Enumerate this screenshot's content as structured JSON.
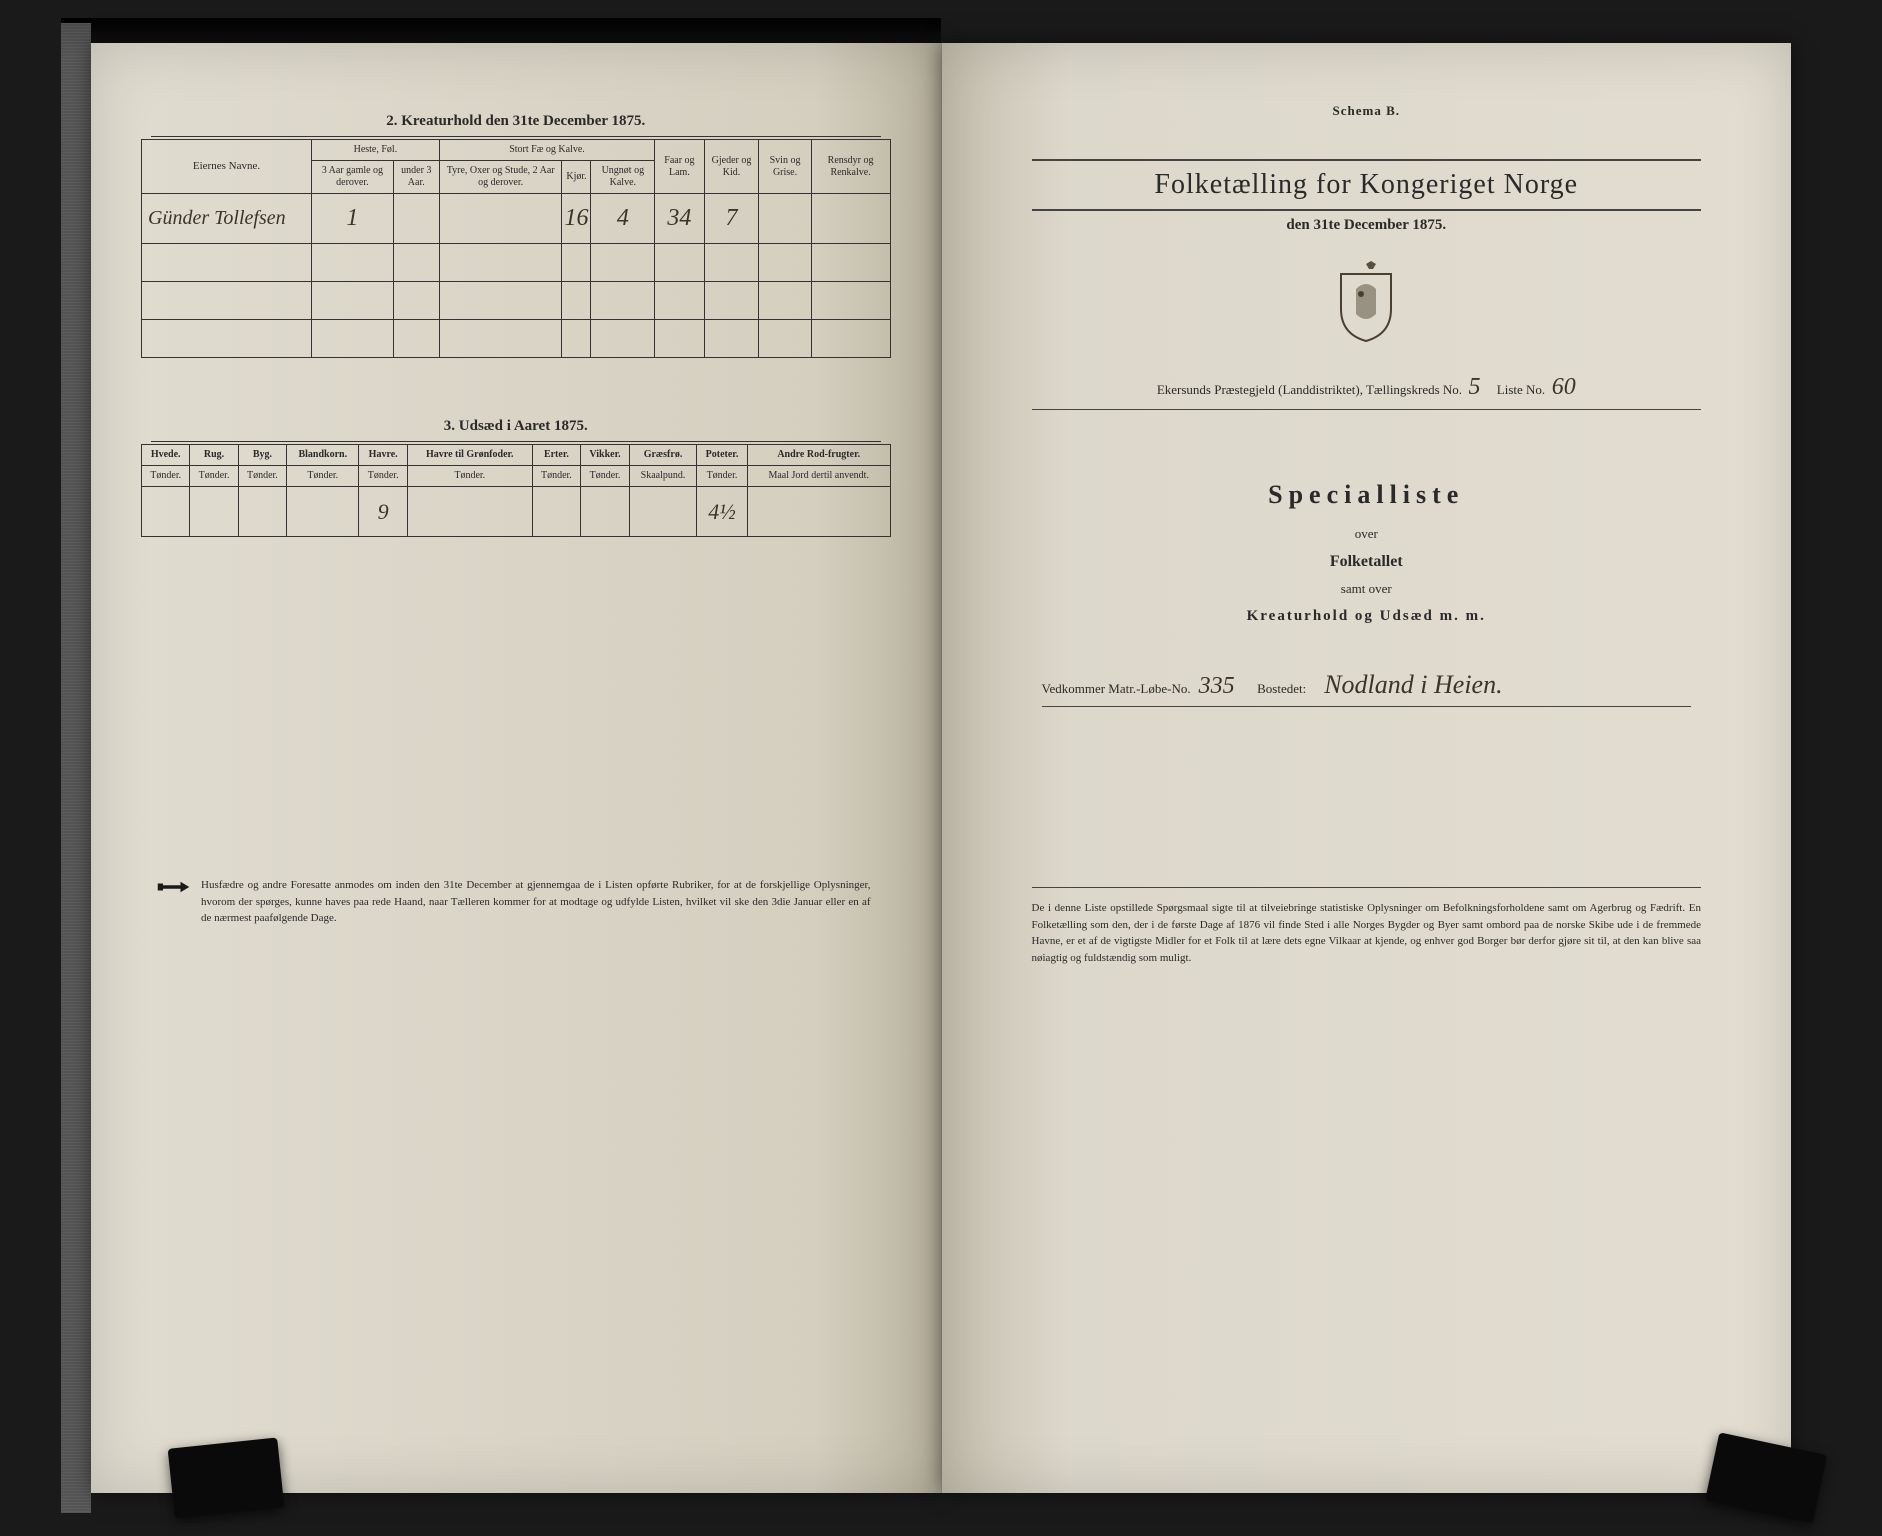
{
  "left": {
    "table2": {
      "title": "2.  Kreaturhold den 31te December 1875.",
      "headers": {
        "name": "Eiernes Navne.",
        "group_heste": "Heste, Føl.",
        "group_fae": "Stort Fæ og Kalve.",
        "group_faar": "Faar og Lam.",
        "group_gjed": "Gjeder og Kid.",
        "group_svin": "Svin og Grise.",
        "group_ren": "Rensdyr og Renkalve.",
        "h1": "3 Aar gamle og derover.",
        "h2": "under 3 Aar.",
        "f1": "Tyre, Oxer og Stude, 2 Aar og derover.",
        "f2": "Kjør.",
        "f3": "Ungnøt og Kalve."
      },
      "row": {
        "name": "Günder Tollefsen",
        "heste3": "1",
        "kjor": "16",
        "ung": "4",
        "faar": "34",
        "gjed": "7"
      }
    },
    "table3": {
      "title": "3.  Udsæd i Aaret 1875.",
      "cols": [
        "Hvede.",
        "Rug.",
        "Byg.",
        "Blandkorn.",
        "Havre.",
        "Havre til Grønfoder.",
        "Erter.",
        "Vikker.",
        "Græsfrø.",
        "Poteter.",
        "Andre Rod-frugter."
      ],
      "units": [
        "Tønder.",
        "Tønder.",
        "Tønder.",
        "Tønder.",
        "Tønder.",
        "Tønder.",
        "Tønder.",
        "Tønder.",
        "Skaalpund.",
        "Tønder.",
        "Maal Jord dertil anvendt."
      ],
      "row": {
        "havre": "9",
        "poteter": "4½"
      }
    },
    "footnote": "Husfædre og andre Foresatte anmodes om inden den 31te December at gjennemgaa de i Listen opførte Rubriker, for at de forskjellige Oplysninger, hvorom der spørges, kunne haves paa rede Haand, naar Tælleren kommer for at modtage og udfylde Listen, hvilket vil ske den 3die Januar eller en af de nærmest paafølgende Dage."
  },
  "right": {
    "schema": "Schema B.",
    "title": "Folketælling for Kongeriget Norge",
    "date": "den 31te December 1875.",
    "district_prefix": "Ekersunds Præstegjeld (Landdistriktet), Tællingskreds No.",
    "kreds_no": "5",
    "liste_label": "Liste No.",
    "liste_no": "60",
    "spec_title": "Specialliste",
    "spec_over": "over",
    "spec_folk": "Folketallet",
    "spec_samt": "samt over",
    "spec_kreat": "Kreaturhold og Udsæd m. m.",
    "matr_label": "Vedkommer Matr.-Løbe-No.",
    "matr_no": "335",
    "bosted_label": "Bostedet:",
    "bosted": "Nodland i Heien.",
    "footer": "De i denne Liste opstillede Spørgsmaal sigte til at tilveiebringe statistiske Oplysninger om Befolkningsforholdene samt om Agerbrug og Fædrift. En Folketælling som den, der i de første Dage af 1876 vil finde Sted i alle Norges Bygder og Byer samt ombord paa de norske Skibe ude i de fremmede Havne, er et af de vigtigste Midler for et Folk til at lære dets egne Vilkaar at kjende, og enhver god Borger bør derfor gjøre sit til, at den kan blive saa nøiagtig og fuldstændig som muligt."
  },
  "colors": {
    "ink": "#2a2a2a",
    "script": "#3a3528"
  }
}
